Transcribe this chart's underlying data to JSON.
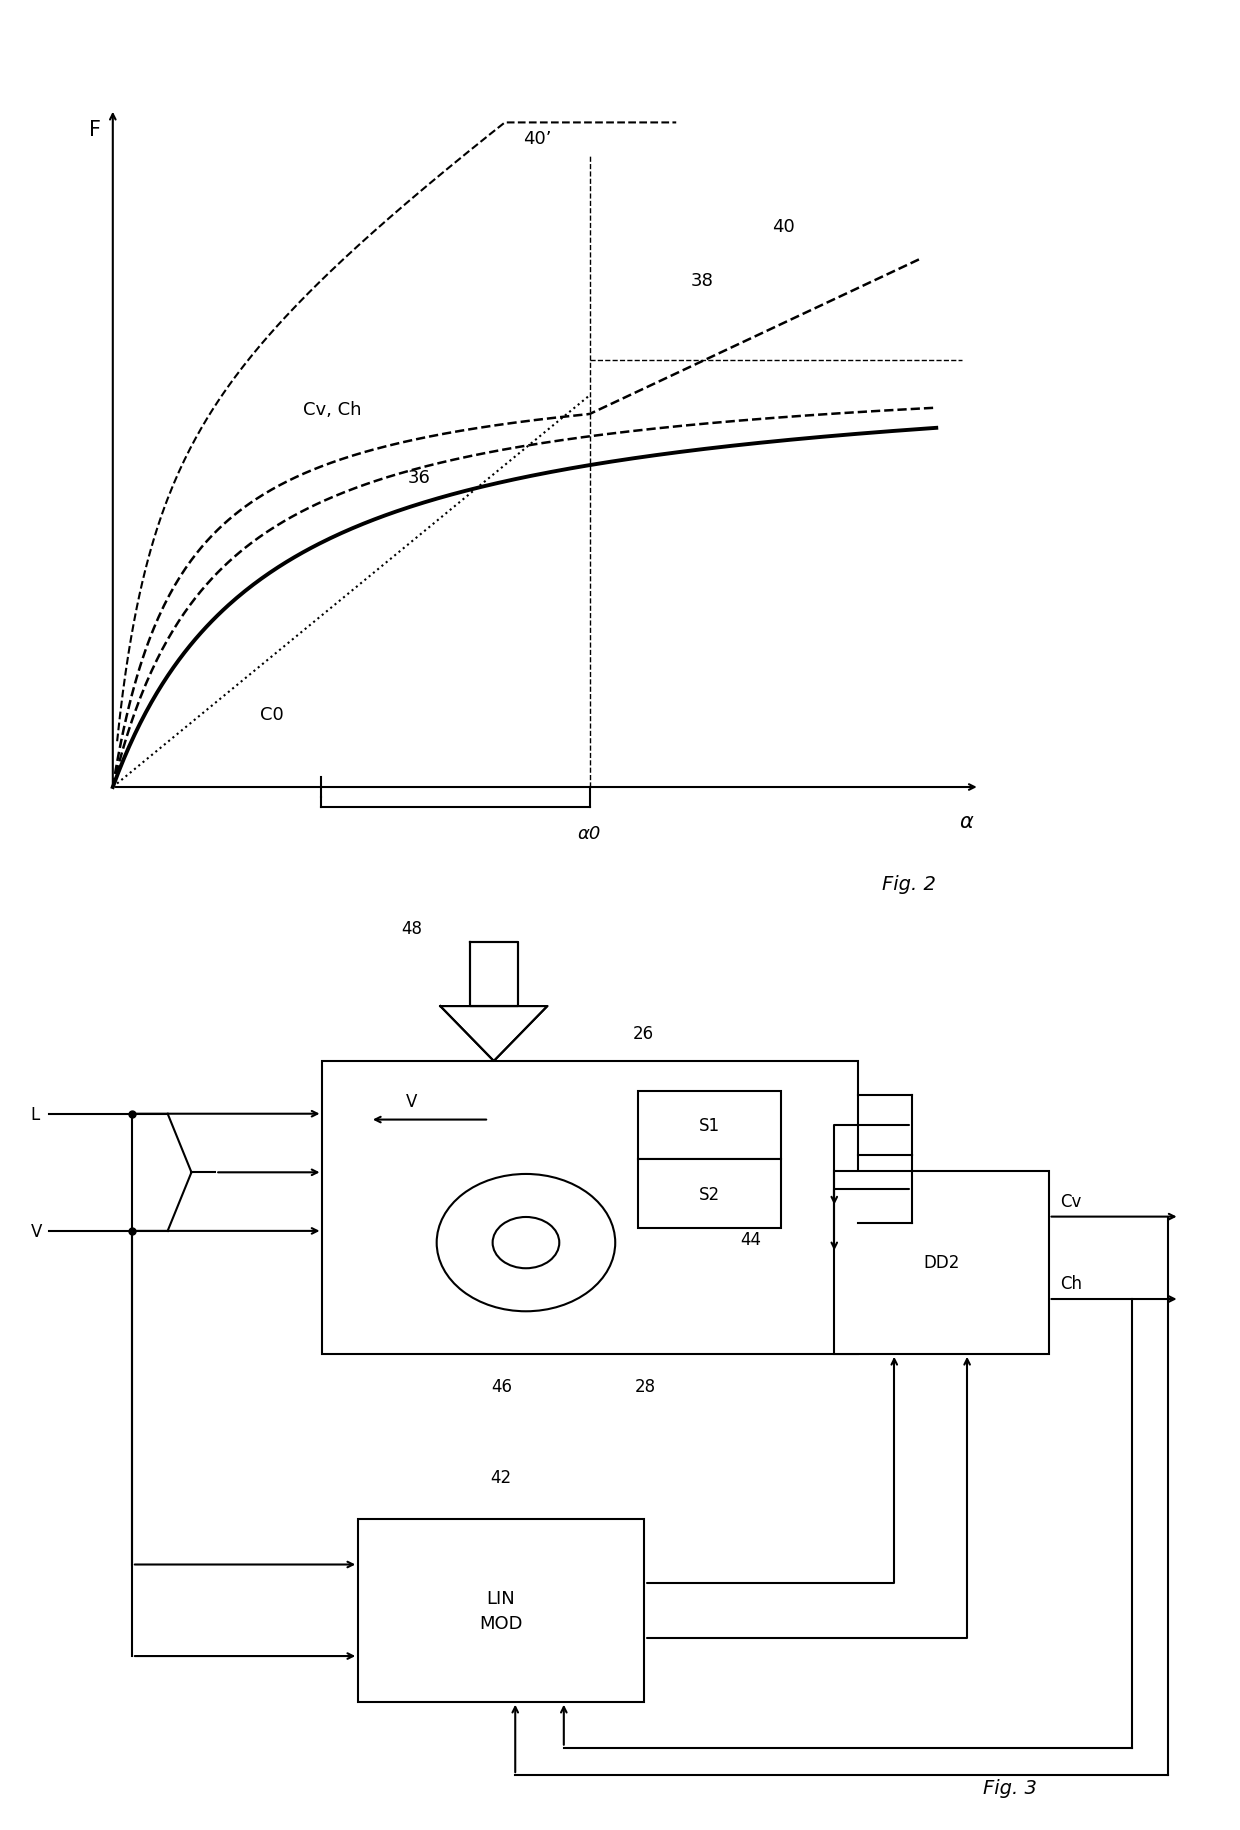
{
  "bg_color": "#ffffff",
  "fig2": {
    "title": "Fig. 2",
    "xlabel": "α",
    "ylabel": "F",
    "alpha0_label": "α0",
    "labels": {
      "CvCh": "Cv, Ch",
      "C0": "C0",
      "curve36": "36",
      "curve40": "40",
      "curve40prime": "40’",
      "line38": "38"
    }
  },
  "fig3": {
    "title": "Fig. 3",
    "labels": {
      "L": "L",
      "V": "V",
      "box26": "26",
      "box42": "42",
      "box44": "44",
      "box48": "48",
      "box46": "46",
      "box28": "28",
      "S1": "S1",
      "S2": "S2",
      "DD2": "DD2",
      "LINMOD": "LIN\nMOD",
      "Cv": "Cv",
      "Ch": "Ch",
      "V_label": "V"
    }
  }
}
